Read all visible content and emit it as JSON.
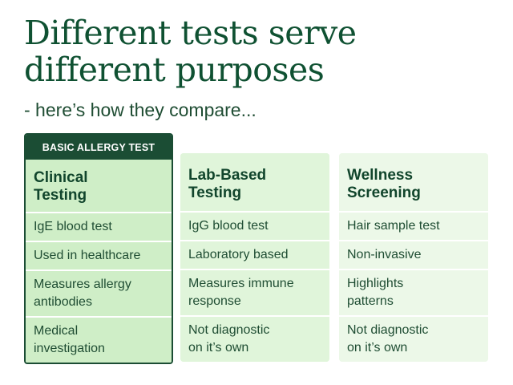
{
  "title": {
    "line1": "Different tests serve",
    "line2": "different purposes"
  },
  "subtitle": "- here’s how they compare...",
  "columns": [
    {
      "badge": "BASIC ALLERGY TEST",
      "heading": [
        "Clinical",
        "Testing"
      ],
      "rows": [
        [
          "IgE blood test"
        ],
        [
          "Used in healthcare"
        ],
        [
          "Measures allergy",
          "antibodies"
        ],
        [
          "Medical",
          "investigation"
        ]
      ]
    },
    {
      "heading": [
        "Lab-Based",
        "Testing"
      ],
      "rows": [
        [
          "IgG blood test"
        ],
        [
          "Laboratory based"
        ],
        [
          "Measures immune",
          "response"
        ],
        [
          "Not diagnostic",
          "on it’s own"
        ]
      ]
    },
    {
      "heading": [
        "Wellness",
        "Screening"
      ],
      "rows": [
        [
          "Hair sample test"
        ],
        [
          "Non-invasive"
        ],
        [
          "Highlights",
          "patterns"
        ],
        [
          "Not diagnostic",
          "on it’s own"
        ]
      ]
    }
  ],
  "colors": {
    "title": "#0f5132",
    "featured_border": "#1b4d34",
    "featured_fill": "#cfeec7",
    "lab_fill": "#e0f5da",
    "wellness_fill": "#ecf8e8"
  }
}
